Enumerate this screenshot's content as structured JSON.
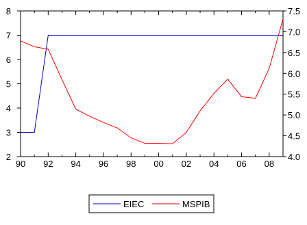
{
  "chart_data": {
    "type": "line",
    "title": "",
    "xlabel": "",
    "ylabel": "",
    "x_tick_labels": [
      "90",
      "92",
      "94",
      "96",
      "98",
      "00",
      "02",
      "04",
      "06",
      "08"
    ],
    "x_range": [
      1990,
      2009
    ],
    "left_axis": {
      "ylim": [
        2,
        8
      ],
      "ticks": [
        2,
        3,
        4,
        5,
        6,
        7,
        8
      ],
      "tick_labels": [
        "2",
        "3",
        "4",
        "5",
        "6",
        "7",
        "8"
      ]
    },
    "right_axis": {
      "ylim": [
        4.0,
        7.5
      ],
      "ticks": [
        4.0,
        4.5,
        5.0,
        5.5,
        6.0,
        6.5,
        7.0,
        7.5
      ],
      "tick_labels": [
        "4.0",
        "4.5",
        "5.0",
        "5.5",
        "6.0",
        "6.5",
        "7.0",
        "7.5"
      ]
    },
    "grid": false,
    "legend_position": "bottom",
    "series": [
      {
        "name": "EIEC",
        "axis": "left",
        "color": "#0000cc",
        "x": [
          1990,
          1991,
          1992,
          1993,
          1994,
          1995,
          1996,
          1997,
          1998,
          1999,
          2000,
          2001,
          2002,
          2003,
          2004,
          2005,
          2006,
          2007,
          2008,
          2009
        ],
        "values": [
          3,
          3,
          7,
          7,
          7,
          7,
          7,
          7,
          7,
          7,
          7,
          7,
          7,
          7,
          7,
          7,
          7,
          7,
          7,
          7
        ]
      },
      {
        "name": "MSPIB",
        "axis": "right",
        "color": "#ff0000",
        "x": [
          1990,
          1991,
          1992,
          1993,
          1994,
          1995,
          1996,
          1997,
          1998,
          1999,
          2000,
          2001,
          2002,
          2003,
          2004,
          2005,
          2006,
          2007,
          2008,
          2009
        ],
        "values": [
          6.78,
          6.64,
          6.58,
          5.85,
          5.14,
          4.97,
          4.82,
          4.69,
          4.45,
          4.32,
          4.32,
          4.31,
          4.58,
          5.1,
          5.52,
          5.86,
          5.44,
          5.4,
          6.12,
          7.31
        ]
      }
    ]
  }
}
